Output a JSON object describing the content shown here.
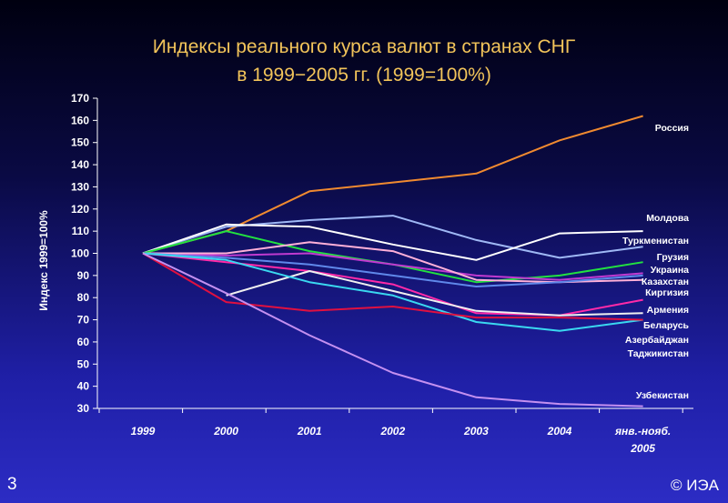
{
  "slide": {
    "title_line1": "Индексы реального курса валют в странах СНГ",
    "title_line2": "в 1999−2005 гг. (1999=100%)",
    "slide_number": "3",
    "copyright": "© ИЭА"
  },
  "colors": {
    "title": "#f2c45a",
    "axis": "#ffffff",
    "background_top": "#000010",
    "background_bottom": "#2c2cc4"
  },
  "chart_data": {
    "type": "line",
    "ylabel": "Индекс 1999=100%",
    "xlabel": "",
    "ylim": [
      30,
      170
    ],
    "yticks": [
      30,
      40,
      50,
      60,
      70,
      80,
      90,
      100,
      110,
      120,
      130,
      140,
      150,
      160,
      170
    ],
    "categories": [
      "1999",
      "2000",
      "2001",
      "2002",
      "2003",
      "2004",
      "янв.-нояб.|2005"
    ],
    "grid": false,
    "legend": "labels at line ends (right)",
    "series": [
      {
        "name": "Россия",
        "color": "#f08a30",
        "values": [
          100,
          110,
          128,
          132,
          136,
          151,
          162
        ]
      },
      {
        "name": "Молдова",
        "color": "#9fb8f5",
        "values": [
          100,
          112,
          115,
          117,
          106,
          98,
          103
        ]
      },
      {
        "name": "Туркменистан",
        "color": "#ffffff",
        "values": [
          100,
          113,
          112,
          104,
          97,
          109,
          110
        ]
      },
      {
        "name": "Грузия",
        "color": "#22e040",
        "values": [
          100,
          110,
          101,
          95,
          87,
          90,
          96
        ]
      },
      {
        "name": "Украина",
        "color": "#c03ad0",
        "values": [
          100,
          99,
          100,
          95,
          90,
          88,
          91
        ]
      },
      {
        "name": "Казахстан",
        "color": "#ffb0d8",
        "values": [
          100,
          100,
          105,
          101,
          88,
          87,
          88
        ]
      },
      {
        "name": "Киргизия",
        "color": "#5f88ea",
        "values": [
          100,
          98,
          95,
          90,
          85,
          87,
          90
        ]
      },
      {
        "name": "Армения",
        "color": "#ff2aa8",
        "values": [
          100,
          96,
          92,
          86,
          73,
          72,
          79
        ]
      },
      {
        "name": "Беларусь",
        "color": "#f0f0f0",
        "values": [
          null,
          81,
          92,
          83,
          74,
          72,
          73
        ]
      },
      {
        "name": "Азербайджан",
        "color": "#3ad8f0",
        "values": [
          100,
          97,
          87,
          81,
          69,
          65,
          70
        ]
      },
      {
        "name": "Таджикистан",
        "color": "#e01040",
        "values": [
          100,
          78,
          74,
          76,
          71,
          71,
          70
        ]
      },
      {
        "name": "Узбекистан",
        "color": "#c490f0",
        "values": [
          100,
          82,
          63,
          46,
          35,
          32,
          31
        ]
      }
    ]
  }
}
